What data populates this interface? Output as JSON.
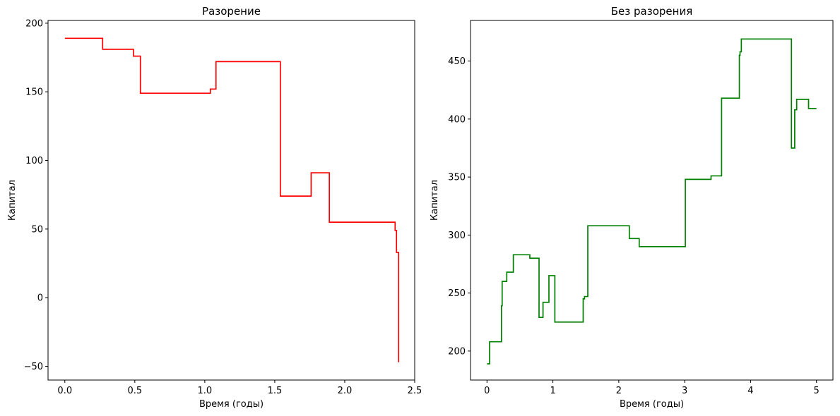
{
  "chart_data": [
    {
      "type": "line",
      "step": "post",
      "title": "Разорение",
      "xlabel": "Время (годы)",
      "ylabel": "Капитал",
      "xlim": [
        -0.12,
        2.5
      ],
      "ylim": [
        -60,
        202
      ],
      "xticks": [
        0.0,
        0.5,
        1.0,
        1.5,
        2.0,
        2.5
      ],
      "xtick_labels": [
        "0.0",
        "0.5",
        "1.0",
        "1.5",
        "2.0",
        "2.5"
      ],
      "yticks": [
        -50,
        0,
        50,
        100,
        150,
        200
      ],
      "ytick_labels": [
        "−50",
        "0",
        "50",
        "100",
        "150",
        "200"
      ],
      "grid": false,
      "series": [
        {
          "color": "#ff0000",
          "x": [
            0.0,
            0.27,
            0.49,
            0.54,
            1.04,
            1.08,
            1.54,
            1.76,
            1.89,
            2.36,
            2.37,
            2.385
          ],
          "y": [
            189,
            181,
            176,
            149,
            152,
            172,
            74,
            91,
            55,
            49,
            33,
            -47
          ]
        }
      ]
    },
    {
      "type": "line",
      "step": "post",
      "title": "Без разорения",
      "xlabel": "Время (годы)",
      "ylabel": "Капитал",
      "xlim": [
        -0.25,
        5.25
      ],
      "ylim": [
        175,
        485
      ],
      "xticks": [
        0,
        1,
        2,
        3,
        4,
        5
      ],
      "xtick_labels": [
        "0",
        "1",
        "2",
        "3",
        "4",
        "5"
      ],
      "yticks": [
        200,
        250,
        300,
        350,
        400,
        450
      ],
      "ytick_labels": [
        "200",
        "250",
        "300",
        "350",
        "400",
        "450"
      ],
      "grid": false,
      "series": [
        {
          "color": "#008000",
          "x": [
            0.0,
            0.04,
            0.22,
            0.23,
            0.3,
            0.4,
            0.65,
            0.79,
            0.85,
            0.94,
            1.03,
            1.46,
            1.48,
            1.53,
            2.16,
            2.31,
            3.01,
            3.4,
            3.56,
            3.83,
            3.84,
            3.86,
            4.62,
            4.67,
            4.7,
            4.88,
            5.0
          ],
          "y": [
            189,
            208,
            239,
            260,
            268,
            283,
            280,
            229,
            242,
            265,
            225,
            245,
            247,
            308,
            297,
            290,
            348,
            351,
            418,
            455,
            458,
            469,
            375,
            408,
            417,
            409,
            409
          ]
        }
      ]
    }
  ]
}
